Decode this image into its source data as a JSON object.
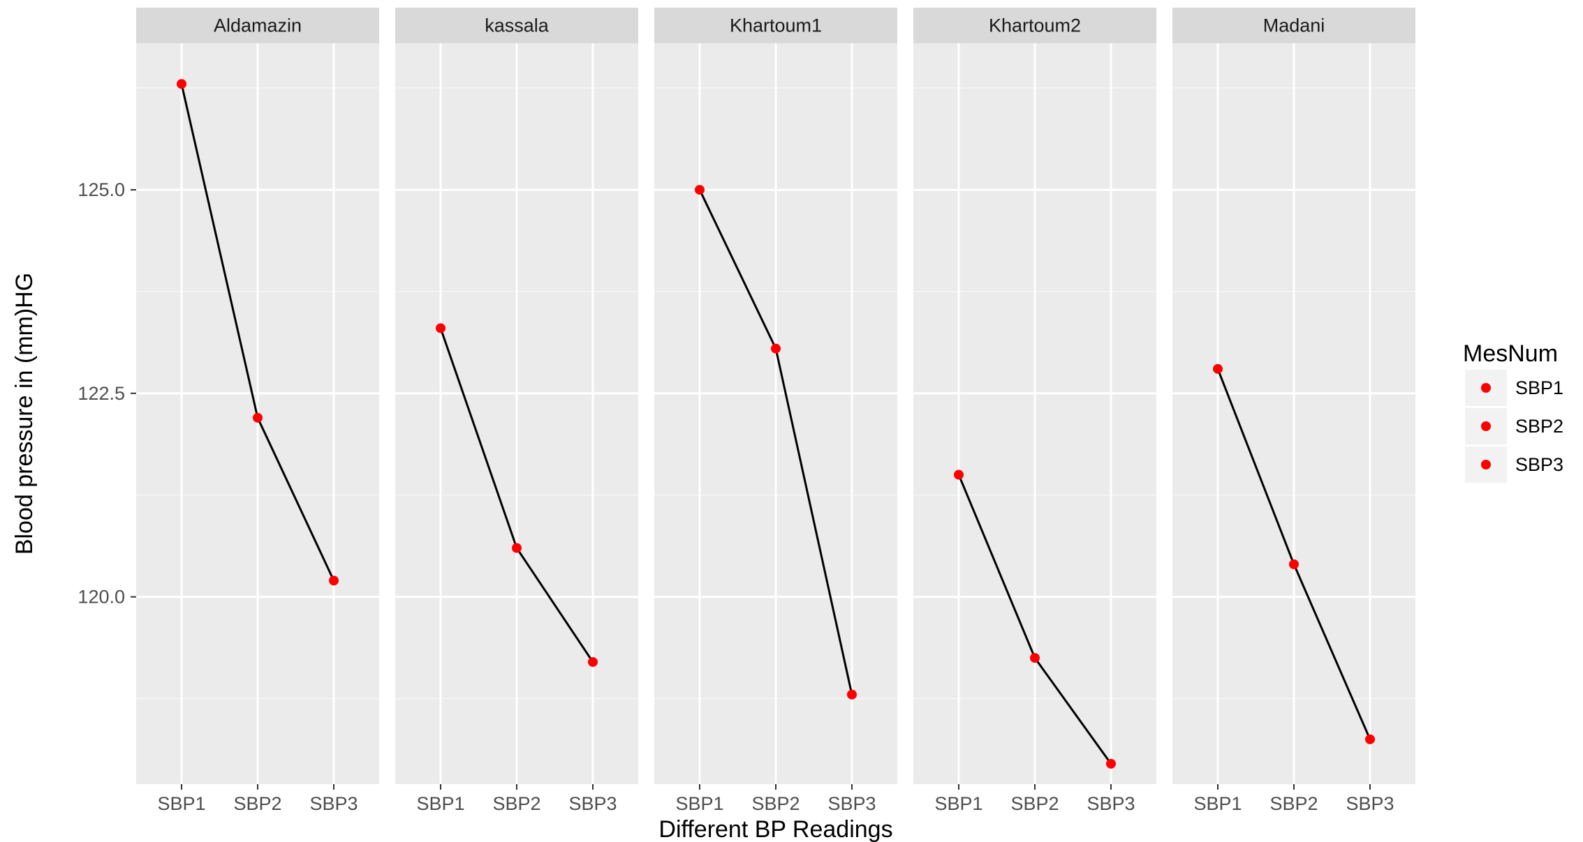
{
  "chart_data": {
    "type": "line",
    "facet_by": "site",
    "panels": [
      "Aldamazin",
      "kassala",
      "Khartoum1",
      "Khartoum2",
      "Madani"
    ],
    "categories": [
      "SBP1",
      "SBP2",
      "SBP3"
    ],
    "series": [
      {
        "panel": "Aldamazin",
        "values": [
          126.3,
          122.2,
          120.2
        ]
      },
      {
        "panel": "kassala",
        "values": [
          123.3,
          120.6,
          119.2
        ]
      },
      {
        "panel": "Khartoum1",
        "values": [
          125.0,
          123.05,
          118.8
        ]
      },
      {
        "panel": "Khartoum2",
        "values": [
          121.5,
          119.25,
          117.95
        ]
      },
      {
        "panel": "Madani",
        "values": [
          122.8,
          120.4,
          118.25
        ]
      }
    ],
    "xlabel": "Different BP Readings",
    "ylabel": "Blood pressure in (mm)HG",
    "ylim": [
      117.7,
      126.8
    ],
    "yticks": [
      120.0,
      122.5,
      125.0
    ],
    "ytick_labels": [
      "120.0",
      "122.5",
      "125.0"
    ],
    "y_minor_ticks": [
      118.75,
      121.25,
      123.75,
      126.25
    ],
    "grid": true,
    "point_color": "#ff0000",
    "line_color": "#000000",
    "panel_background": "#ebebeb",
    "strip_background": "#d9d9d9",
    "legend": {
      "title": "MesNum",
      "entries": [
        "SBP1",
        "SBP2",
        "SBP3"
      ],
      "position": "right"
    }
  }
}
